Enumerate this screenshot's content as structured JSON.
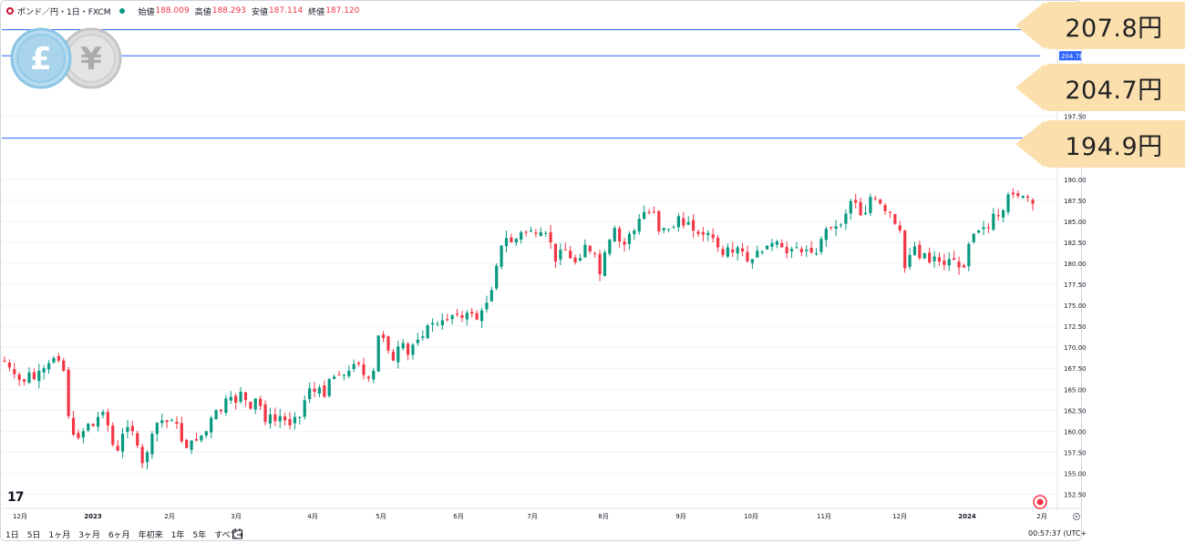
{
  "legend": {
    "symbol": "ポンド／円・1日・FXCM",
    "open_label": "始値",
    "open_value": "188.009",
    "high_label": "高値",
    "high_value": "188.293",
    "low_label": "安値",
    "low_value": "187.114",
    "close_label": "終値",
    "close_value": "187.120"
  },
  "icons": {
    "pound": "£",
    "yen": "¥",
    "tv_logo": "17",
    "flags": "pound-yen-coins-icon"
  },
  "callouts": [
    {
      "label": "207.8円",
      "value": 207.8
    },
    {
      "label": "204.7円",
      "value": 204.7
    },
    {
      "label": "194.9円",
      "value": 194.9
    }
  ],
  "axis_badge": "204.78",
  "bottombar": {
    "ranges": [
      "1日",
      "5日",
      "1ヶ月",
      "3ヶ月",
      "6ヶ月",
      "年初来",
      "1年",
      "5年",
      "すべて"
    ],
    "time": "00:57:37 (UTC+"
  },
  "colors": {
    "up": "#089981",
    "down": "#f23645",
    "line": "#2962ff",
    "callout": "#fbe0ae"
  },
  "chart_data": {
    "type": "candlestick",
    "ylim": [
      151.0,
      210.0
    ],
    "yticks": [
      152.5,
      155.0,
      157.5,
      160.0,
      162.5,
      165.0,
      167.5,
      170.0,
      172.5,
      175.0,
      177.5,
      180.0,
      182.5,
      185.0,
      187.5,
      190.0,
      197.5
    ],
    "ytick_labels": [
      "152.50",
      "155.00",
      "157.50",
      "160.00",
      "162.50",
      "165.00",
      "167.50",
      "170.00",
      "172.50",
      "175.00",
      "177.50",
      "180.00",
      "182.50",
      "185.00",
      "187.50",
      "190.00",
      "197.50"
    ],
    "x_labels": [
      "12月",
      "2023",
      "2月",
      "3月",
      "4月",
      "5月",
      "6月",
      "7月",
      "8月",
      "9月",
      "10月",
      "11月",
      "12月",
      "2024",
      "2月"
    ],
    "horizontal_lines": [
      207.8,
      204.7,
      194.9
    ],
    "closes": [
      168.3,
      167.6,
      166.8,
      166.1,
      165.9,
      167.0,
      166.2,
      167.2,
      167.5,
      168.1,
      168.7,
      168.4,
      167.2,
      161.8,
      159.6,
      159.2,
      160.0,
      160.9,
      160.6,
      161.7,
      162.3,
      160.7,
      158.4,
      157.7,
      159.7,
      160.5,
      160.0,
      158.3,
      156.2,
      157.5,
      159.7,
      161.0,
      161.3,
      161.1,
      161.3,
      160.9,
      158.8,
      158.0,
      158.9,
      158.9,
      159.5,
      160.0,
      161.6,
      162.5,
      162.4,
      163.9,
      164.1,
      163.4,
      164.7,
      163.7,
      162.7,
      163.9,
      163.0,
      161.1,
      162.0,
      161.2,
      161.8,
      161.3,
      160.7,
      161.7,
      161.7,
      163.7,
      165.1,
      164.7,
      165.2,
      164.1,
      166.2,
      166.5,
      166.7,
      166.7,
      167.2,
      168.0,
      168.0,
      166.7,
      166.3,
      167.2,
      171.4,
      171.1,
      169.6,
      168.4,
      170.1,
      170.5,
      169.1,
      170.3,
      170.9,
      171.3,
      172.6,
      172.9,
      172.8,
      173.2,
      173.3,
      173.8,
      173.9,
      173.5,
      174.1,
      174.0,
      173.3,
      174.4,
      175.3,
      176.8,
      179.7,
      182.1,
      183.0,
      182.5,
      182.9,
      183.7,
      183.7,
      183.9,
      183.5,
      183.7,
      183.6,
      182.5,
      180.2,
      181.6,
      181.6,
      180.6,
      180.1,
      180.6,
      182.2,
      181.4,
      181.1,
      178.7,
      181.3,
      182.8,
      184.2,
      182.6,
      182.2,
      183.5,
      183.9,
      185.3,
      186.1,
      186.0,
      186.1,
      183.8,
      184.2,
      184.1,
      184.3,
      185.6,
      184.5,
      184.9,
      183.9,
      183.5,
      183.4,
      183.6,
      183.0,
      181.9,
      181.0,
      181.9,
      181.3,
      181.9,
      181.4,
      180.2,
      180.5,
      181.5,
      181.4,
      182.1,
      182.4,
      182.6,
      181.9,
      181.2,
      181.7,
      181.9,
      181.3,
      181.6,
      181.3,
      181.2,
      182.9,
      184.1,
      184.2,
      184.4,
      184.6,
      185.9,
      187.4,
      187.2,
      185.7,
      186.0,
      187.9,
      187.7,
      187.1,
      186.2,
      186.0,
      184.7,
      183.9,
      179.4,
      181.0,
      182.0,
      180.6,
      181.2,
      180.1,
      180.8,
      180.2,
      179.8,
      180.5,
      180.4,
      179.5,
      179.5,
      182.3,
      183.5,
      183.9,
      184.3,
      184.2,
      185.9,
      185.7,
      186.3,
      188.2,
      188.2,
      188.0,
      188.0,
      187.8,
      187.1
    ]
  }
}
